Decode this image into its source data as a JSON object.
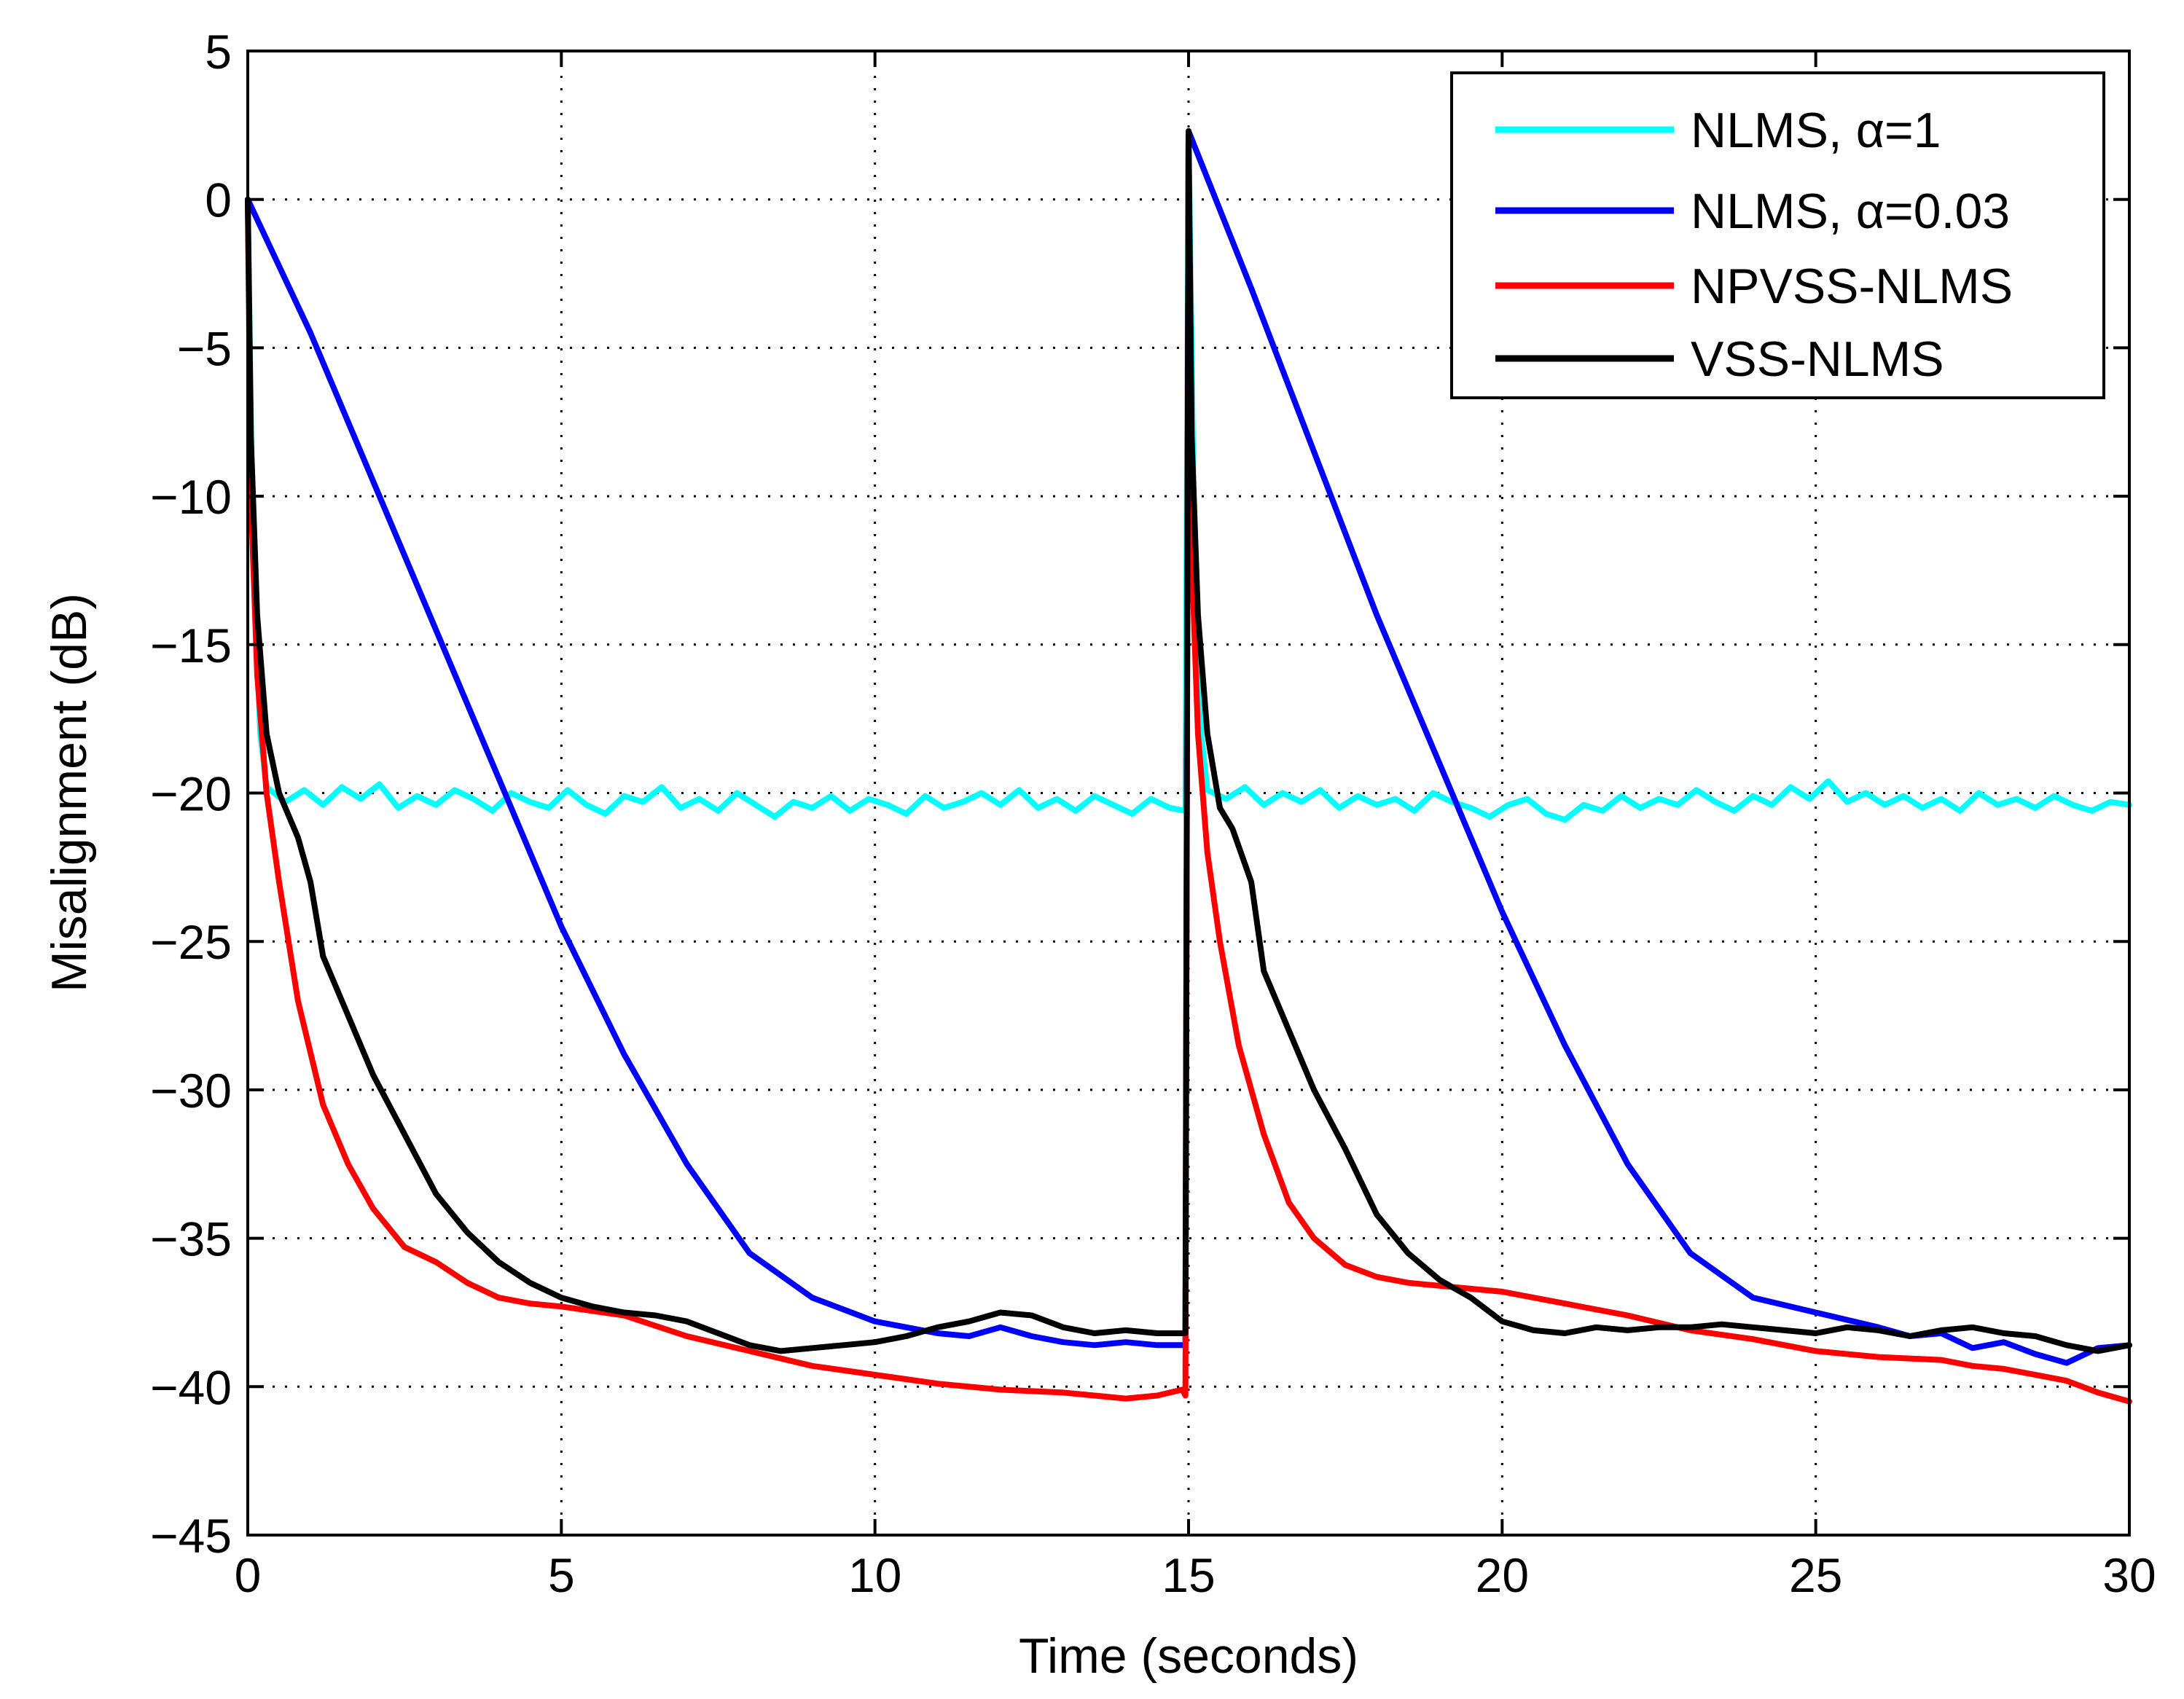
{
  "chart_data": {
    "type": "line",
    "title": "",
    "xlabel": "Time (seconds)",
    "ylabel": "Misalignment (dB)",
    "xlim": [
      0,
      30
    ],
    "ylim": [
      -45,
      5
    ],
    "xticks": [
      0,
      5,
      10,
      15,
      20,
      25,
      30
    ],
    "yticks": [
      5,
      0,
      -5,
      -10,
      -15,
      -20,
      -25,
      -30,
      -35,
      -40,
      -45
    ],
    "xtick_labels": [
      "0",
      "5",
      "10",
      "15",
      "20",
      "25",
      "30"
    ],
    "ytick_labels": [
      "5",
      "0",
      "−5",
      "−10",
      "−15",
      "−20",
      "−25",
      "−30",
      "−35",
      "−40",
      "−45"
    ],
    "grid": true,
    "legend_position": "top-right",
    "series": [
      {
        "name": "NLMS, α=1",
        "color": "#00ffff",
        "x": [
          0,
          0.08,
          0.2,
          0.3,
          0.6,
          0.9,
          1.2,
          1.5,
          1.8,
          2.1,
          2.4,
          2.7,
          3.0,
          3.3,
          3.6,
          3.9,
          4.2,
          4.5,
          4.8,
          5.1,
          5.4,
          5.7,
          6.0,
          6.3,
          6.6,
          6.9,
          7.2,
          7.5,
          7.8,
          8.1,
          8.4,
          8.7,
          9.0,
          9.3,
          9.6,
          9.9,
          10.2,
          10.5,
          10.8,
          11.1,
          11.4,
          11.7,
          12.0,
          12.3,
          12.6,
          12.9,
          13.2,
          13.5,
          13.8,
          14.1,
          14.4,
          14.7,
          14.95,
          15.0,
          15.08,
          15.2,
          15.3,
          15.6,
          15.9,
          16.2,
          16.5,
          16.8,
          17.1,
          17.4,
          17.7,
          18.0,
          18.3,
          18.6,
          18.9,
          19.2,
          19.5,
          19.8,
          20.1,
          20.4,
          20.7,
          21.0,
          21.3,
          21.6,
          21.9,
          22.2,
          22.5,
          22.8,
          23.1,
          23.4,
          23.7,
          24.0,
          24.3,
          24.6,
          24.9,
          25.2,
          25.5,
          25.8,
          26.1,
          26.4,
          26.7,
          27.0,
          27.3,
          27.6,
          27.9,
          28.2,
          28.5,
          28.8,
          29.1,
          29.4,
          29.7,
          30.0
        ],
        "y": [
          0,
          -12,
          -18,
          -19.8,
          -20.3,
          -19.9,
          -20.4,
          -19.8,
          -20.2,
          -19.7,
          -20.5,
          -20.1,
          -20.4,
          -19.9,
          -20.2,
          -20.6,
          -20.0,
          -20.3,
          -20.5,
          -19.9,
          -20.4,
          -20.7,
          -20.1,
          -20.3,
          -19.8,
          -20.5,
          -20.2,
          -20.6,
          -20.0,
          -20.4,
          -20.8,
          -20.3,
          -20.5,
          -20.1,
          -20.6,
          -20.2,
          -20.4,
          -20.7,
          -20.1,
          -20.5,
          -20.3,
          -20.0,
          -20.4,
          -19.9,
          -20.5,
          -20.2,
          -20.6,
          -20.1,
          -20.4,
          -20.7,
          -20.2,
          -20.5,
          -20.6,
          2.3,
          -10,
          -18,
          -19.9,
          -20.2,
          -19.8,
          -20.4,
          -20.0,
          -20.3,
          -19.9,
          -20.5,
          -20.1,
          -20.4,
          -20.2,
          -20.6,
          -20.0,
          -20.3,
          -20.5,
          -20.8,
          -20.4,
          -20.2,
          -20.7,
          -20.9,
          -20.4,
          -20.6,
          -20.1,
          -20.5,
          -20.2,
          -20.4,
          -19.9,
          -20.3,
          -20.6,
          -20.1,
          -20.4,
          -19.8,
          -20.2,
          -19.6,
          -20.3,
          -20.0,
          -20.4,
          -20.1,
          -20.5,
          -20.2,
          -20.6,
          -20.0,
          -20.4,
          -20.2,
          -20.5,
          -20.1,
          -20.4,
          -20.6,
          -20.3,
          -20.4
        ]
      },
      {
        "name": "NLMS, α=0.03",
        "color": "#0000ff",
        "x": [
          0,
          1,
          2,
          3,
          4,
          5,
          6,
          7,
          8,
          9,
          9.5,
          10,
          10.5,
          11,
          11.5,
          12,
          12.5,
          13,
          13.5,
          14,
          14.5,
          14.95,
          15.0,
          16,
          17,
          18,
          19,
          20,
          21,
          22,
          23,
          24,
          25,
          26,
          26.5,
          27,
          27.5,
          28,
          28.5,
          29,
          29.5,
          30
        ],
        "y": [
          0,
          -4.5,
          -9.5,
          -14.5,
          -19.5,
          -24.5,
          -28.8,
          -32.5,
          -35.5,
          -37.0,
          -37.4,
          -37.8,
          -38.0,
          -38.2,
          -38.3,
          -38.0,
          -38.3,
          -38.5,
          -38.6,
          -38.5,
          -38.6,
          -38.6,
          2.3,
          -3.0,
          -8.5,
          -14.0,
          -19.0,
          -24.0,
          -28.5,
          -32.5,
          -35.5,
          -37.0,
          -37.5,
          -38.0,
          -38.3,
          -38.2,
          -38.7,
          -38.5,
          -38.9,
          -39.2,
          -38.7,
          -38.6
        ]
      },
      {
        "name": "NPVSS-NLMS",
        "color": "#ff0000",
        "x": [
          0,
          0.05,
          0.15,
          0.3,
          0.5,
          0.8,
          1.2,
          1.6,
          2.0,
          2.5,
          3.0,
          3.5,
          4.0,
          4.5,
          5.0,
          6.0,
          7.0,
          8.0,
          9.0,
          10.0,
          11.0,
          12.0,
          13.0,
          13.5,
          14.0,
          14.5,
          14.9,
          14.95,
          15.0,
          15.05,
          15.15,
          15.3,
          15.5,
          15.8,
          16.2,
          16.6,
          17.0,
          17.5,
          18.0,
          18.5,
          19.0,
          19.5,
          20.0,
          21.0,
          22.0,
          23.0,
          24.0,
          25.0,
          26.0,
          27.0,
          27.5,
          28.0,
          28.5,
          29.0,
          29.5,
          30.0
        ],
        "y": [
          0,
          -10,
          -16,
          -20,
          -23,
          -27,
          -30.5,
          -32.5,
          -34.0,
          -35.3,
          -35.8,
          -36.5,
          -37.0,
          -37.2,
          -37.3,
          -37.6,
          -38.3,
          -38.8,
          -39.3,
          -39.6,
          -39.9,
          -40.1,
          -40.2,
          -40.3,
          -40.4,
          -40.3,
          -40.1,
          -40.3,
          2.3,
          -12,
          -18,
          -22,
          -25,
          -28.5,
          -31.5,
          -33.8,
          -35.0,
          -35.9,
          -36.3,
          -36.5,
          -36.6,
          -36.7,
          -36.8,
          -37.2,
          -37.6,
          -38.1,
          -38.4,
          -38.8,
          -39.0,
          -39.1,
          -39.3,
          -39.4,
          -39.6,
          -39.8,
          -40.2,
          -40.5
        ]
      },
      {
        "name": "VSS-NLMS",
        "color": "#000000",
        "x": [
          0,
          0.05,
          0.15,
          0.3,
          0.5,
          0.8,
          1.0,
          1.2,
          1.6,
          2.0,
          2.5,
          3.0,
          3.5,
          4.0,
          4.5,
          5.0,
          5.5,
          6.0,
          6.5,
          7.0,
          7.5,
          8.0,
          8.5,
          9.0,
          9.5,
          10.0,
          10.5,
          11.0,
          11.5,
          12.0,
          12.5,
          13.0,
          13.5,
          14.0,
          14.5,
          14.95,
          15.0,
          15.05,
          15.15,
          15.3,
          15.5,
          15.7,
          16.0,
          16.2,
          16.6,
          17.0,
          17.5,
          18.0,
          18.5,
          19.0,
          19.5,
          20.0,
          20.5,
          21.0,
          21.5,
          22.0,
          22.5,
          23.0,
          23.5,
          24.0,
          24.5,
          25.0,
          25.5,
          26.0,
          26.5,
          27.0,
          27.5,
          28.0,
          28.5,
          29.0,
          29.5,
          30.0
        ],
        "y": [
          0,
          -8,
          -14,
          -18,
          -20,
          -21.5,
          -23,
          -25.5,
          -27.5,
          -29.5,
          -31.5,
          -33.5,
          -34.8,
          -35.8,
          -36.5,
          -37.0,
          -37.3,
          -37.5,
          -37.6,
          -37.8,
          -38.2,
          -38.6,
          -38.8,
          -38.7,
          -38.6,
          -38.5,
          -38.3,
          -38.0,
          -37.8,
          -37.5,
          -37.6,
          -38.0,
          -38.2,
          -38.1,
          -38.2,
          -38.2,
          2.3,
          -8,
          -14,
          -18,
          -20.5,
          -21.2,
          -23,
          -26,
          -28,
          -30,
          -32,
          -34.2,
          -35.5,
          -36.4,
          -37.0,
          -37.8,
          -38.1,
          -38.2,
          -38.0,
          -38.1,
          -38.0,
          -38.0,
          -37.9,
          -38.0,
          -38.1,
          -38.2,
          -38.0,
          -38.1,
          -38.3,
          -38.1,
          -38.0,
          -38.2,
          -38.3,
          -38.6,
          -38.8,
          -38.6
        ]
      }
    ]
  }
}
